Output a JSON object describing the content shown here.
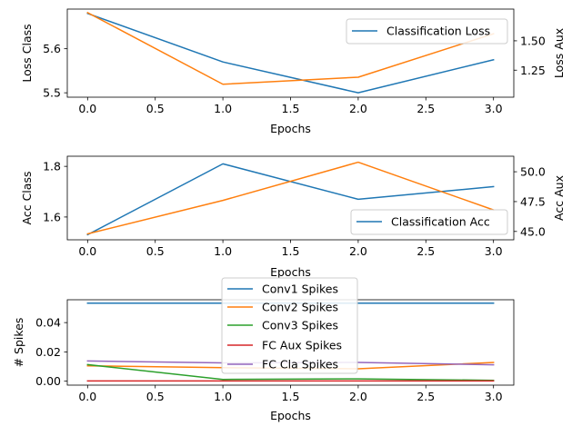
{
  "chart_data": [
    {
      "type": "line",
      "x": [
        0,
        1,
        2,
        3
      ],
      "xlabel": "Epochs",
      "xlim": [
        -0.15,
        3.15
      ],
      "xticks": [
        "0.0",
        "0.5",
        "1.0",
        "1.5",
        "2.0",
        "2.5",
        "3.0"
      ],
      "ylabel": "Loss Class",
      "ylim": [
        5.49,
        5.69
      ],
      "yticks": [
        "5.5",
        "5.6"
      ],
      "y2label": "Loss Aux",
      "y2lim": [
        1.02,
        1.77
      ],
      "y2ticks": [
        "1.25",
        "1.50"
      ],
      "series": [
        {
          "name": "Classification Loss",
          "axis": "left",
          "color": "#1f77b4",
          "values": [
            5.68,
            5.57,
            5.5,
            5.575
          ]
        },
        {
          "axis": "right",
          "color": "#ff7f0e",
          "values": [
            1.74,
            1.13,
            1.19,
            1.56
          ]
        }
      ],
      "legend": "upper right",
      "grid": false
    },
    {
      "type": "line",
      "x": [
        0,
        1,
        2,
        3
      ],
      "xlabel": "Epochs",
      "xlim": [
        -0.15,
        3.15
      ],
      "xticks": [
        "0.0",
        "0.5",
        "1.0",
        "1.5",
        "2.0",
        "2.5",
        "3.0"
      ],
      "ylabel": "Acc Class",
      "ylim": [
        1.51,
        1.84
      ],
      "yticks": [
        "1.6",
        "1.8"
      ],
      "y2label": "Acc Aux",
      "y2lim": [
        44.3,
        51.3
      ],
      "y2ticks": [
        "45.0",
        "47.5",
        "50.0"
      ],
      "series": [
        {
          "name": "Classification Acc",
          "axis": "left",
          "color": "#1f77b4",
          "values": [
            1.53,
            1.81,
            1.67,
            1.72
          ]
        },
        {
          "axis": "right",
          "color": "#ff7f0e",
          "values": [
            44.8,
            47.6,
            50.8,
            46.8
          ]
        }
      ],
      "legend": "lower right",
      "grid": false
    },
    {
      "type": "line",
      "x": [
        0,
        1,
        2,
        3
      ],
      "xlabel": "Epochs",
      "xlim": [
        -0.15,
        3.15
      ],
      "xticks": [
        "0.0",
        "0.5",
        "1.0",
        "1.5",
        "2.0",
        "2.5",
        "3.0"
      ],
      "ylabel": "# Spikes",
      "ylim": [
        -0.0027,
        0.0556
      ],
      "yticks": [
        "0.00",
        "0.02",
        "0.04"
      ],
      "series": [
        {
          "name": "Conv1 Spikes",
          "axis": "left",
          "color": "#1f77b4",
          "values": [
            0.0533,
            0.0533,
            0.0533,
            0.0533
          ]
        },
        {
          "name": "Conv2 Spikes",
          "axis": "left",
          "color": "#ff7f0e",
          "values": [
            0.0105,
            0.0092,
            0.0085,
            0.0128
          ]
        },
        {
          "name": "Conv3 Spikes",
          "axis": "left",
          "color": "#2ca02c",
          "values": [
            0.0113,
            0.0012,
            0.0016,
            0.0006
          ]
        },
        {
          "name": "FC Aux Spikes",
          "axis": "left",
          "color": "#d62728",
          "values": [
            0.0002,
            0.0002,
            0.0002,
            0.0002
          ]
        },
        {
          "name": "FC Cla Spikes",
          "axis": "left",
          "color": "#9467bd",
          "values": [
            0.0138,
            0.0125,
            0.0128,
            0.0112
          ]
        }
      ],
      "legend": "upper center",
      "grid": false
    }
  ]
}
